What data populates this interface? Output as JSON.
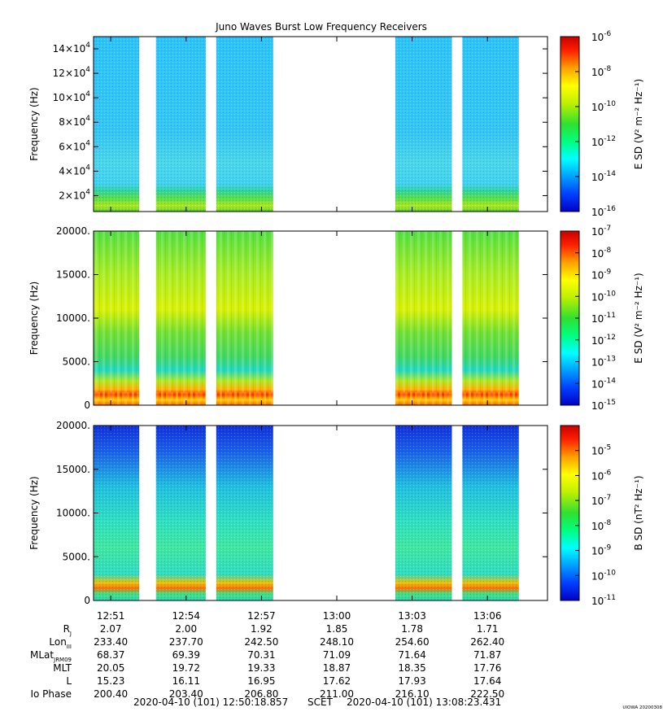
{
  "title": "Juno Waves Burst Low Frequency Receivers",
  "colors": {
    "data_background": "#1ec8ff",
    "gap": "#ffffff",
    "colormap": [
      "#0000c8",
      "#0040ff",
      "#00a0ff",
      "#00ffff",
      "#00ff80",
      "#30e030",
      "#c0f000",
      "#ffff00",
      "#ffa000",
      "#ff2000",
      "#c80000"
    ]
  },
  "time_ticks": [
    "12:51",
    "12:54",
    "12:57",
    "13:00",
    "13:03",
    "13:06"
  ],
  "ephemeris": {
    "rows": [
      {
        "label": "R",
        "sub": "J",
        "values": [
          "2.07",
          "2.00",
          "1.92",
          "1.85",
          "1.78",
          "1.71"
        ]
      },
      {
        "label": "Lon",
        "sub": "III",
        "values": [
          "233.40",
          "237.70",
          "242.50",
          "248.10",
          "254.60",
          "262.40"
        ]
      },
      {
        "label": "MLat",
        "sub": "JRM09",
        "values": [
          "68.37",
          "69.39",
          "70.31",
          "71.09",
          "71.64",
          "71.87"
        ]
      },
      {
        "label": "MLT",
        "sub": "",
        "values": [
          "20.05",
          "19.72",
          "19.33",
          "18.87",
          "18.35",
          "17.76"
        ]
      },
      {
        "label": "L",
        "sub": "",
        "values": [
          "15.23",
          "16.11",
          "16.95",
          "17.62",
          "17.93",
          "17.64"
        ]
      },
      {
        "label": "Io Phase",
        "sub": "",
        "values": [
          "200.40",
          "203.40",
          "206.80",
          "211.00",
          "216.10",
          "222.50"
        ]
      }
    ]
  },
  "footer": {
    "start": "2020-04-10 (101) 12:50:18.857",
    "scet": "SCET",
    "end": "2020-04-10 (101) 13:08:23.431",
    "stamp": "UIOWA 20200308"
  },
  "chart_data": [
    {
      "type": "heatmap",
      "panel": "top",
      "ylabel": "Frequency (Hz)",
      "ylim": [
        7000,
        150000
      ],
      "y_ticks": [
        {
          "value": 20000,
          "mant": "2×10",
          "exp": "4"
        },
        {
          "value": 40000,
          "mant": "4×10",
          "exp": "4"
        },
        {
          "value": 60000,
          "mant": "6×10",
          "exp": "4"
        },
        {
          "value": 80000,
          "mant": "8×10",
          "exp": "4"
        },
        {
          "value": 100000,
          "mant": "10×10",
          "exp": "4"
        },
        {
          "value": 120000,
          "mant": "12×10",
          "exp": "4"
        },
        {
          "value": 140000,
          "mant": "14×10",
          "exp": "4"
        }
      ],
      "colorbar": {
        "label": "E SD (V² m⁻² Hz⁻¹)",
        "log_range": [
          -16,
          -6
        ],
        "ticks": [
          {
            "exp": "-6"
          },
          {
            "exp": "-8"
          },
          {
            "exp": "-10"
          },
          {
            "exp": "-12"
          },
          {
            "exp": "-14"
          },
          {
            "exp": "-16"
          }
        ]
      },
      "data_intervals": [
        [
          "12:50:18",
          "12:52:08"
        ],
        [
          "12:52:48",
          "12:54:47"
        ],
        [
          "12:55:12",
          "12:57:28"
        ],
        [
          "13:02:20",
          "13:04:35"
        ],
        [
          "13:05:00",
          "13:07:15"
        ]
      ],
      "grid": false
    },
    {
      "type": "heatmap",
      "panel": "middle",
      "ylabel": "Frequency (Hz)",
      "ylim": [
        0,
        20000
      ],
      "y_ticks": [
        {
          "value": 0,
          "label": "0"
        },
        {
          "value": 5000,
          "label": "5000."
        },
        {
          "value": 10000,
          "label": "10000."
        },
        {
          "value": 15000,
          "label": "15000."
        },
        {
          "value": 20000,
          "label": "20000."
        }
      ],
      "colorbar": {
        "label": "E SD (V² m⁻² Hz⁻¹)",
        "log_range": [
          -15,
          -7
        ],
        "ticks": [
          {
            "exp": "-7"
          },
          {
            "exp": "-8"
          },
          {
            "exp": "-9"
          },
          {
            "exp": "-10"
          },
          {
            "exp": "-11"
          },
          {
            "exp": "-12"
          },
          {
            "exp": "-13"
          },
          {
            "exp": "-14"
          },
          {
            "exp": "-15"
          }
        ]
      },
      "data_intervals": [
        [
          "12:50:18",
          "12:52:08"
        ],
        [
          "12:52:48",
          "12:54:47"
        ],
        [
          "12:55:12",
          "12:57:28"
        ],
        [
          "13:02:20",
          "13:04:35"
        ],
        [
          "13:05:00",
          "13:07:15"
        ]
      ],
      "grid": false
    },
    {
      "type": "heatmap",
      "panel": "bottom",
      "ylabel": "Frequency (Hz)",
      "ylim": [
        0,
        20000
      ],
      "y_ticks": [
        {
          "value": 0,
          "label": "0"
        },
        {
          "value": 5000,
          "label": "5000."
        },
        {
          "value": 10000,
          "label": "10000."
        },
        {
          "value": 15000,
          "label": "15000."
        },
        {
          "value": 20000,
          "label": "20000."
        }
      ],
      "colorbar": {
        "label": "B SD (nT² Hz⁻¹)",
        "log_range": [
          -11,
          -4
        ],
        "ticks": [
          {
            "exp": "-5"
          },
          {
            "exp": "-6"
          },
          {
            "exp": "-7"
          },
          {
            "exp": "-8"
          },
          {
            "exp": "-9"
          },
          {
            "exp": "-10"
          },
          {
            "exp": "-11"
          }
        ]
      },
      "data_intervals": [
        [
          "12:50:18",
          "12:52:08"
        ],
        [
          "12:52:48",
          "12:54:47"
        ],
        [
          "12:55:12",
          "12:57:28"
        ],
        [
          "13:02:20",
          "13:04:35"
        ],
        [
          "13:05:00",
          "13:07:15"
        ]
      ],
      "grid": false
    }
  ]
}
